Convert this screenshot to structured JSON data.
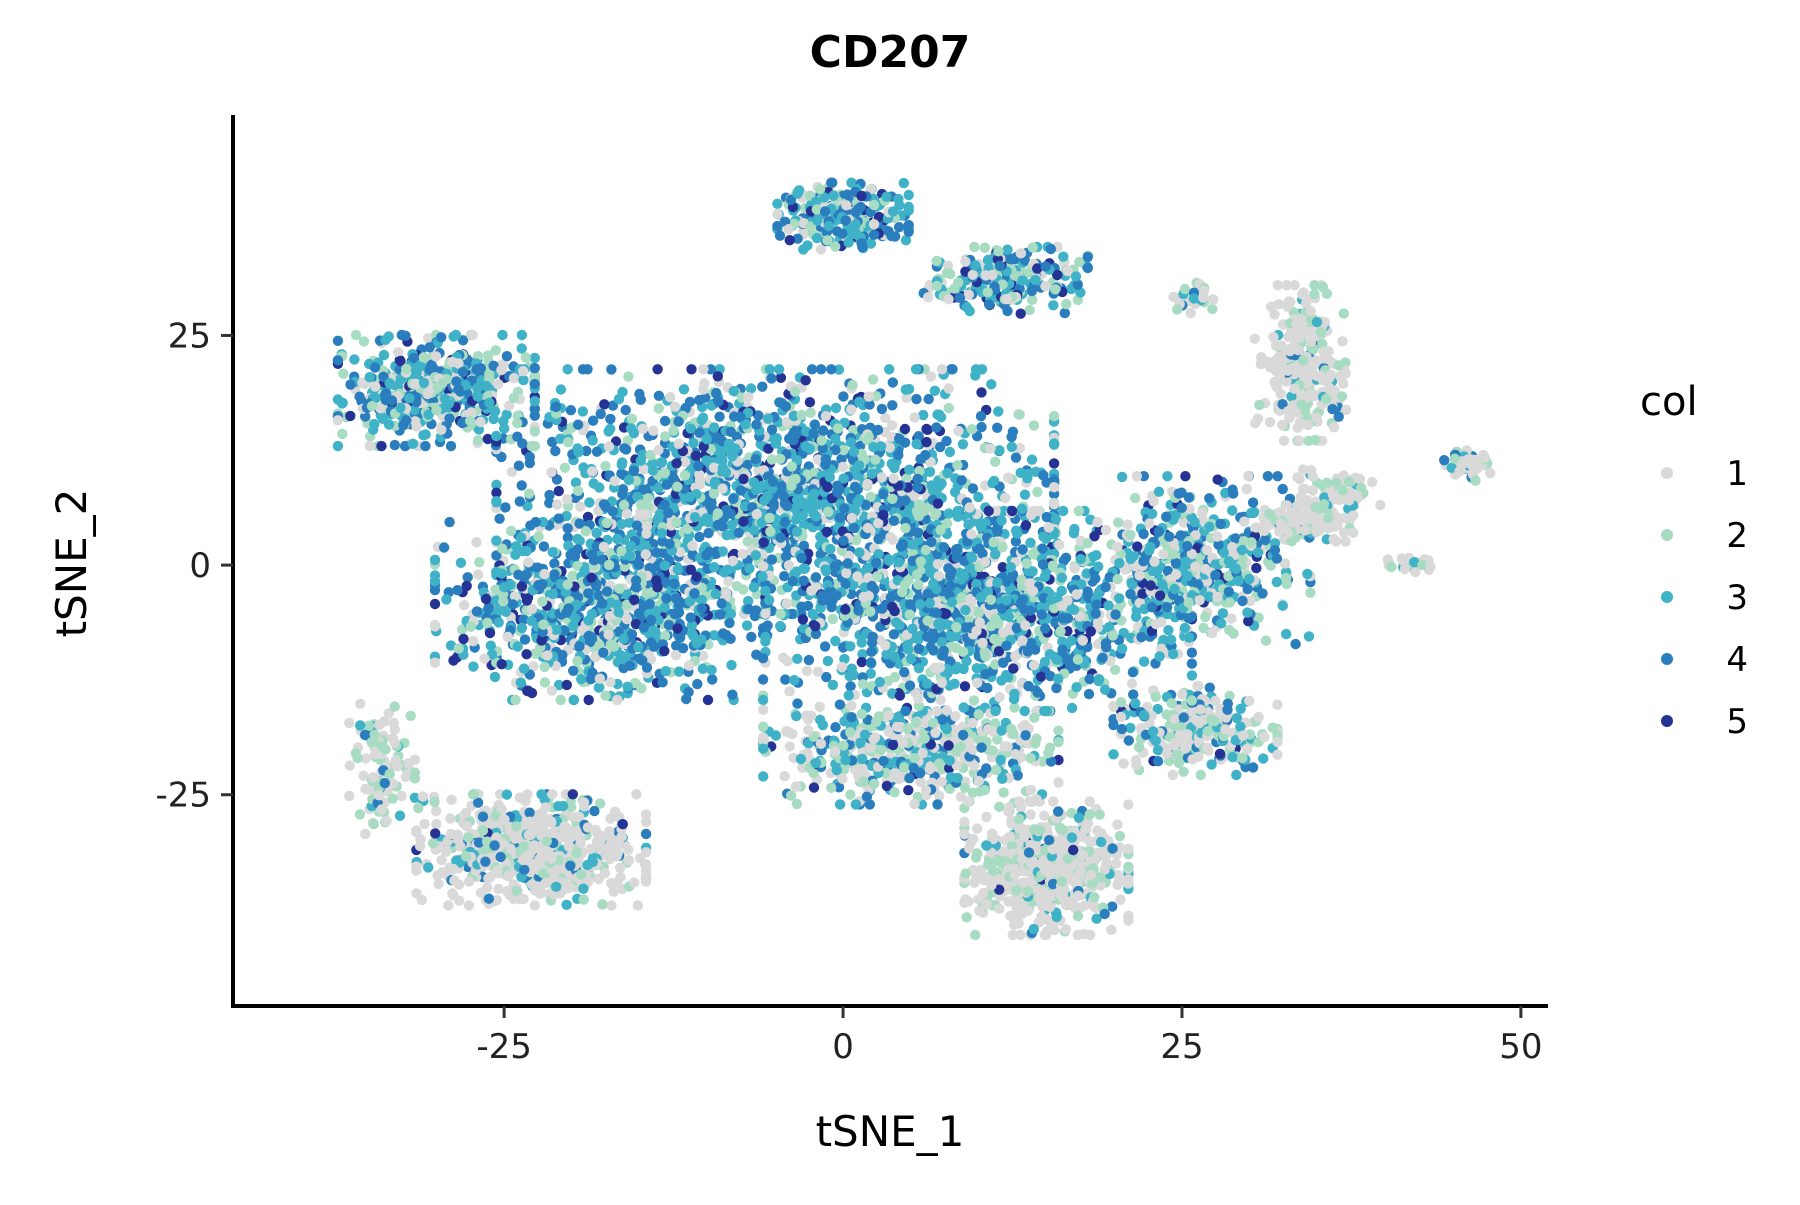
{
  "chart_data": {
    "type": "scatter",
    "title": "CD207",
    "xlabel": "tSNE_1",
    "ylabel": "tSNE_2",
    "xlim": [
      -45,
      52
    ],
    "ylim": [
      -48,
      49
    ],
    "x_ticks": [
      -25,
      0,
      25,
      50
    ],
    "y_ticks": [
      -25,
      0,
      25
    ],
    "x_tick_labels": [
      "-25",
      "0",
      "25",
      "50"
    ],
    "y_tick_labels": [
      "-25",
      "0",
      "25"
    ],
    "grid": false,
    "legend": {
      "title": "col",
      "placement": "right",
      "entries": [
        {
          "label": "1",
          "color": "#d9d9d9"
        },
        {
          "label": "2",
          "color": "#a8dcc2"
        },
        {
          "label": "3",
          "color": "#40b2c8"
        },
        {
          "label": "4",
          "color": "#2a7ebe"
        },
        {
          "label": "5",
          "color": "#253494"
        }
      ]
    },
    "clusters": [
      {
        "center": [
          -5,
          8
        ],
        "spread": [
          17,
          11
        ],
        "count": 1700,
        "weights": [
          0.14,
          0.14,
          0.32,
          0.32,
          0.08
        ]
      },
      {
        "center": [
          10,
          -5
        ],
        "spread": [
          13,
          9
        ],
        "count": 1200,
        "weights": [
          0.14,
          0.14,
          0.32,
          0.32,
          0.08
        ]
      },
      {
        "center": [
          -18,
          -5
        ],
        "spread": [
          10,
          8
        ],
        "count": 800,
        "weights": [
          0.14,
          0.15,
          0.32,
          0.31,
          0.08
        ]
      },
      {
        "center": [
          -30,
          19
        ],
        "spread": [
          6,
          5
        ],
        "count": 500,
        "weights": [
          0.16,
          0.2,
          0.3,
          0.27,
          0.07
        ]
      },
      {
        "center": [
          0,
          38
        ],
        "spread": [
          4,
          3
        ],
        "count": 260,
        "weights": [
          0.16,
          0.22,
          0.3,
          0.25,
          0.07
        ]
      },
      {
        "center": [
          12,
          31
        ],
        "spread": [
          5,
          3
        ],
        "count": 220,
        "weights": [
          0.18,
          0.2,
          0.3,
          0.25,
          0.07
        ]
      },
      {
        "center": [
          26,
          0
        ],
        "spread": [
          7,
          8
        ],
        "count": 450,
        "weights": [
          0.22,
          0.18,
          0.28,
          0.26,
          0.06
        ]
      },
      {
        "center": [
          -23,
          -31
        ],
        "spread": [
          7,
          5
        ],
        "count": 650,
        "weights": [
          0.62,
          0.2,
          0.1,
          0.07,
          0.01
        ]
      },
      {
        "center": [
          15,
          -33
        ],
        "spread": [
          5,
          6
        ],
        "count": 600,
        "weights": [
          0.68,
          0.22,
          0.06,
          0.03,
          0.01
        ]
      },
      {
        "center": [
          34,
          22
        ],
        "spread": [
          3,
          7
        ],
        "count": 260,
        "weights": [
          0.72,
          0.2,
          0.05,
          0.03,
          0.0
        ]
      },
      {
        "center": [
          34,
          5
        ],
        "spread": [
          3,
          2
        ],
        "count": 130,
        "weights": [
          0.8,
          0.14,
          0.04,
          0.02,
          0.0
        ]
      },
      {
        "center": [
          46,
          11
        ],
        "spread": [
          1.5,
          1.5
        ],
        "count": 45,
        "weights": [
          0.55,
          0.3,
          0.1,
          0.05,
          0.0
        ]
      },
      {
        "center": [
          42,
          0
        ],
        "spread": [
          1.5,
          0.7
        ],
        "count": 25,
        "weights": [
          0.5,
          0.3,
          0.15,
          0.05,
          0.0
        ]
      },
      {
        "center": [
          26,
          29
        ],
        "spread": [
          1.5,
          1.5
        ],
        "count": 25,
        "weights": [
          0.4,
          0.3,
          0.2,
          0.1,
          0.0
        ]
      },
      {
        "center": [
          36,
          8
        ],
        "spread": [
          3,
          2
        ],
        "count": 60,
        "weights": [
          0.6,
          0.25,
          0.1,
          0.05,
          0.0
        ]
      },
      {
        "center": [
          5,
          -20
        ],
        "spread": [
          9,
          5
        ],
        "count": 500,
        "weights": [
          0.35,
          0.25,
          0.22,
          0.15,
          0.03
        ]
      },
      {
        "center": [
          26,
          -18
        ],
        "spread": [
          5,
          4
        ],
        "count": 260,
        "weights": [
          0.4,
          0.22,
          0.2,
          0.15,
          0.03
        ]
      },
      {
        "center": [
          -34,
          -22
        ],
        "spread": [
          2,
          6
        ],
        "count": 100,
        "weights": [
          0.55,
          0.3,
          0.1,
          0.05,
          0.0
        ]
      }
    ]
  }
}
